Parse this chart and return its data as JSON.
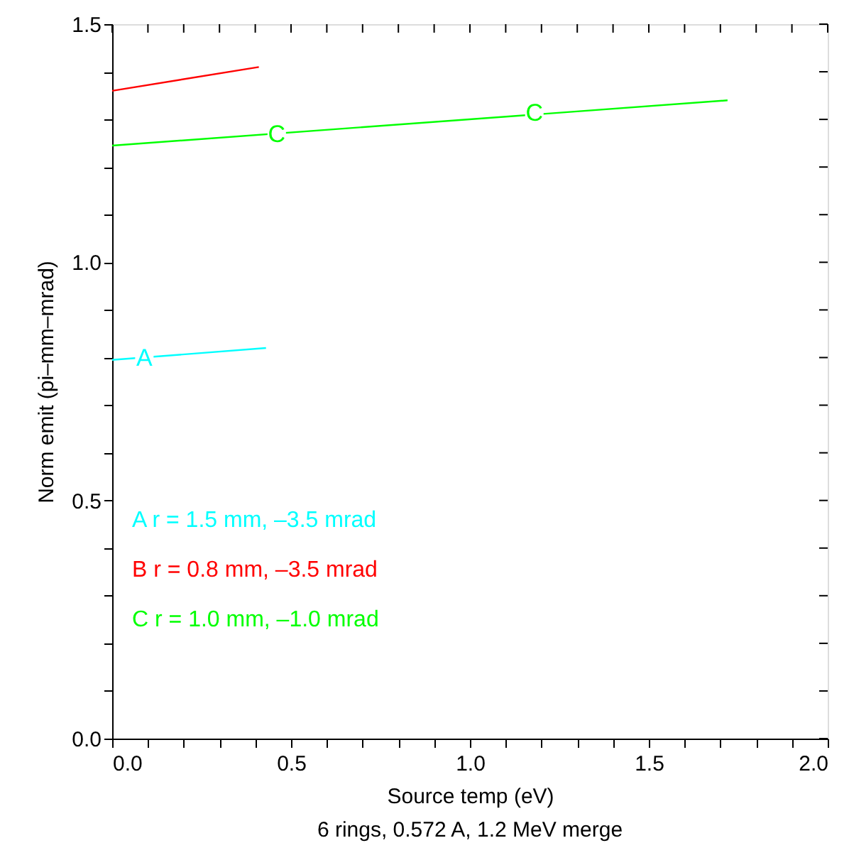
{
  "chart_data": {
    "type": "line",
    "xlabel": "Source temp (eV)",
    "ylabel": "Norm emit (pi–mm–mrad)",
    "series": [
      {
        "name": "A r = 1.5 mm, –3.5 mrad",
        "color": "#00ffff",
        "x": [
          0.0,
          0.43
        ],
        "values": [
          0.795,
          0.82
        ]
      },
      {
        "name": "B r = 0.8 mm, –3.5 mrad",
        "color": "#ff0000",
        "x": [
          0.0,
          0.41
        ],
        "values": [
          1.36,
          1.41
        ]
      },
      {
        "name": "C r = 1.0 mm, –1.0 mrad",
        "color": "#00ff00",
        "x": [
          0.0,
          1.72
        ],
        "values": [
          1.245,
          1.34
        ]
      }
    ],
    "annotations": [
      {
        "text": "A",
        "x": 0.09,
        "y": 0.797
      },
      {
        "text": "C",
        "x": 0.46,
        "y": 1.268
      },
      {
        "text": "C",
        "x": 1.18,
        "y": 1.312
      },
      "6 rings, 0.572 A, 1.2 MeV merge"
    ],
    "xlim": [
      0.0,
      2.0
    ],
    "ylim": [
      0.0,
      1.5
    ],
    "xticks": [
      {
        "value": 0.0,
        "label": "0.0"
      },
      {
        "value": 0.1,
        "label": null
      },
      {
        "value": 0.2,
        "label": null
      },
      {
        "value": 0.3,
        "label": null
      },
      {
        "value": 0.4,
        "label": null
      },
      {
        "value": 0.5,
        "label": "0.5"
      },
      {
        "value": 0.6,
        "label": null
      },
      {
        "value": 0.7,
        "label": null
      },
      {
        "value": 0.8,
        "label": null
      },
      {
        "value": 0.9,
        "label": null
      },
      {
        "value": 1.0,
        "label": "1.0"
      },
      {
        "value": 1.1,
        "label": null
      },
      {
        "value": 1.2,
        "label": null
      },
      {
        "value": 1.3,
        "label": null
      },
      {
        "value": 1.4,
        "label": null
      },
      {
        "value": 1.5,
        "label": "1.5"
      },
      {
        "value": 1.6,
        "label": null
      },
      {
        "value": 1.7,
        "label": null
      },
      {
        "value": 1.8,
        "label": null
      },
      {
        "value": 1.9,
        "label": null
      },
      {
        "value": 2.0,
        "label": "2.0"
      }
    ],
    "yticks": [
      {
        "value": 0.0,
        "label": "0.0"
      },
      {
        "value": 0.1,
        "label": null
      },
      {
        "value": 0.2,
        "label": null
      },
      {
        "value": 0.3,
        "label": null
      },
      {
        "value": 0.4,
        "label": null
      },
      {
        "value": 0.5,
        "label": "0.5"
      },
      {
        "value": 0.6,
        "label": null
      },
      {
        "value": 0.7,
        "label": null
      },
      {
        "value": 0.8,
        "label": null
      },
      {
        "value": 0.9,
        "label": null
      },
      {
        "value": 1.0,
        "label": "1.0"
      },
      {
        "value": 1.1,
        "label": null
      },
      {
        "value": 1.2,
        "label": null
      },
      {
        "value": 1.3,
        "label": null
      },
      {
        "value": 1.4,
        "label": null
      },
      {
        "value": 1.5,
        "label": "1.5"
      }
    ],
    "grid": false,
    "legend": "bottom left",
    "marker": "none",
    "line_style": "solid"
  }
}
